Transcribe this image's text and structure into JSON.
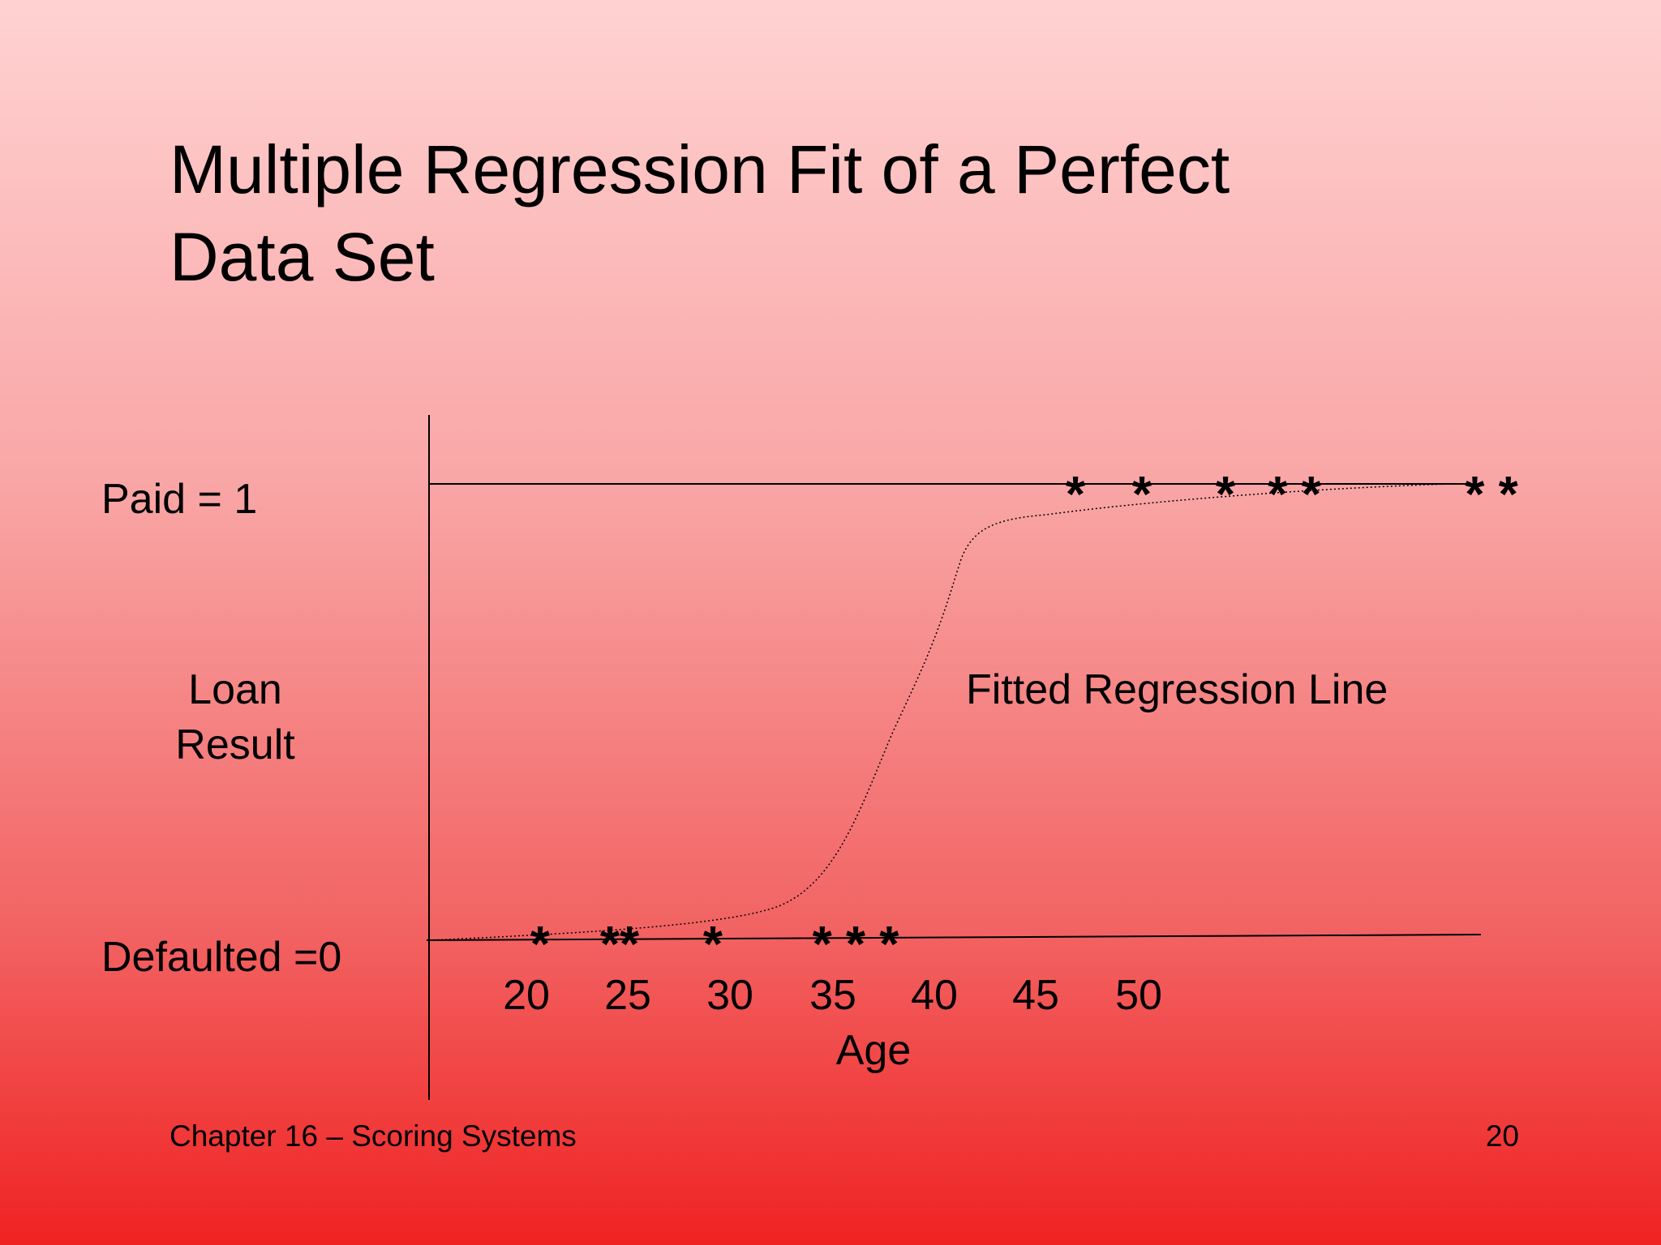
{
  "title": [
    "Multiple Regression Fit of a Perfect",
    "Data Set"
  ],
  "y_labels": {
    "top": "Paid = 1",
    "middle": [
      "Loan",
      "Result"
    ],
    "bottom": "Defaulted =0"
  },
  "x_ticks": [
    "20",
    "25",
    "30",
    "35",
    "40",
    "45",
    "50"
  ],
  "x_label": "Age",
  "annotation": "Fitted Regression Line",
  "stars_bottom": [
    "*",
    "**",
    "*",
    "* * *"
  ],
  "stars_top": [
    "*",
    "*",
    "*",
    "* *",
    "* *"
  ],
  "footer": {
    "left": "Chapter 16 – Scoring Systems",
    "right": "20"
  }
}
